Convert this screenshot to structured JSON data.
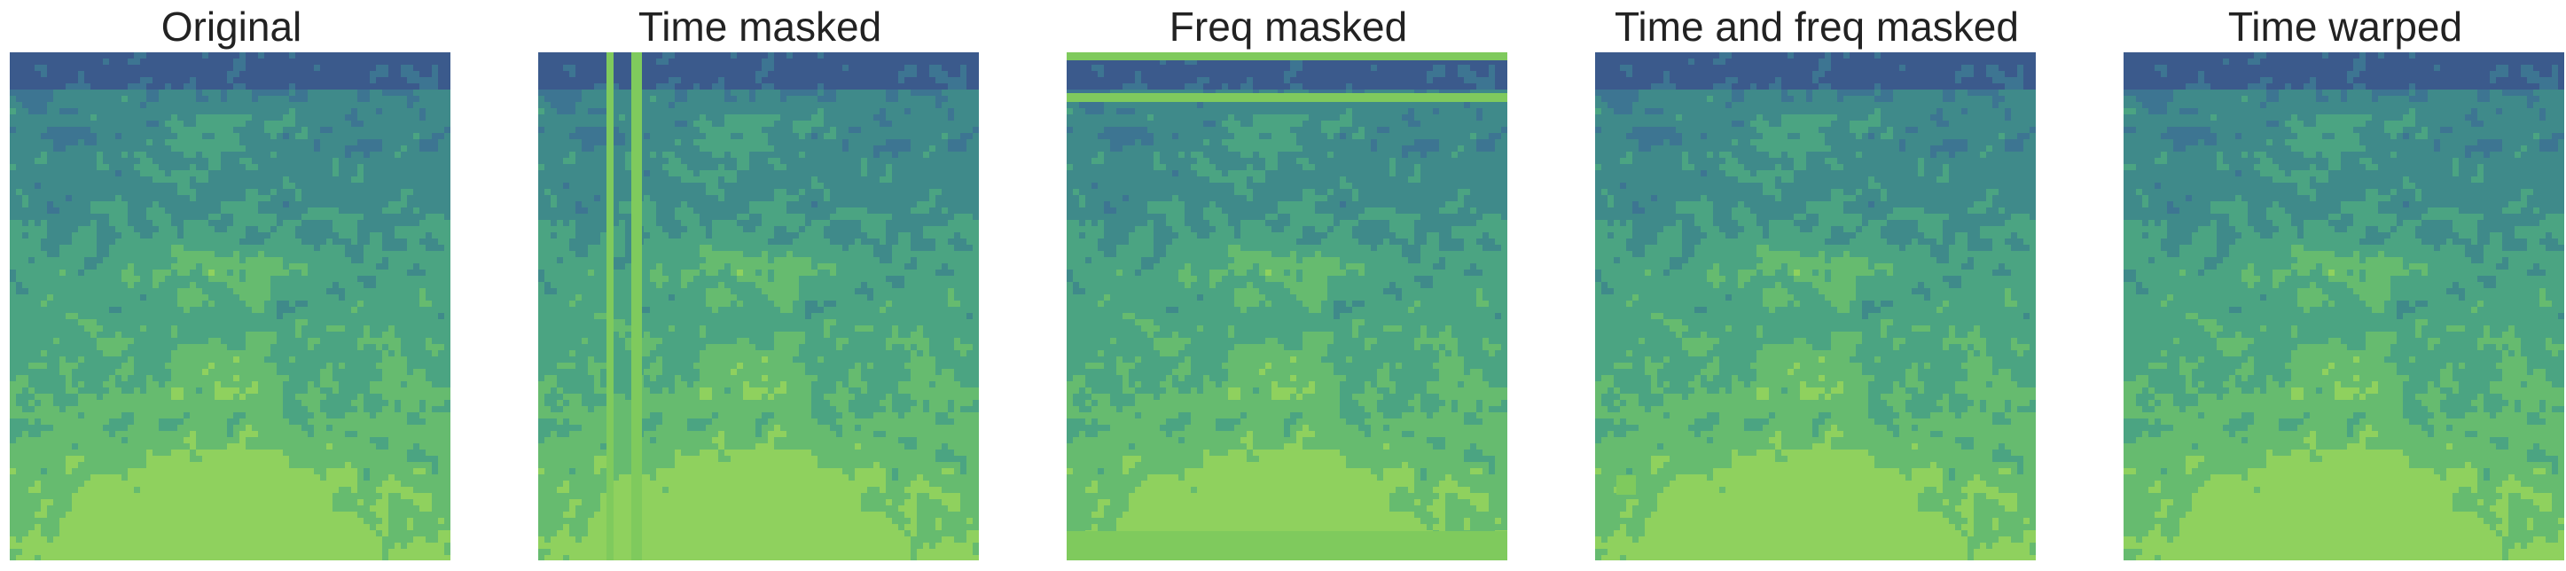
{
  "chart_data": [
    {
      "type": "heatmap",
      "title": "Original",
      "palette": [
        "#3b5a8c",
        "#3d7592",
        "#3f8a8a",
        "#4ba482",
        "#66bb6f",
        "#8fd15e"
      ]
    },
    {
      "type": "heatmap",
      "title": "Time masked",
      "palette": [
        "#3b5a8c",
        "#3d7592",
        "#3f8a8a",
        "#4ba482",
        "#66bb6f",
        "#8fd15e"
      ],
      "mask_color": "#7fca5d",
      "mask_axis": "time"
    },
    {
      "type": "heatmap",
      "title": "Freq masked",
      "palette": [
        "#3b5a8c",
        "#3d7592",
        "#3f8a8a",
        "#4ba482",
        "#66bb6f",
        "#8fd15e"
      ],
      "mask_color": "#7fca5d",
      "mask_axis": "frequency"
    },
    {
      "type": "heatmap",
      "title": "Time and freq masked",
      "palette": [
        "#3b5a8c",
        "#3d7592",
        "#3f8a8a",
        "#4ba482",
        "#66bb6f",
        "#8fd15e"
      ],
      "mask_color": "#7fca5d",
      "mask_axis": "time+frequency"
    },
    {
      "type": "heatmap",
      "title": "Time warped",
      "palette": [
        "#3b5a8c",
        "#3d7592",
        "#3f8a8a",
        "#4ba482",
        "#66bb6f",
        "#8fd15e"
      ]
    }
  ]
}
